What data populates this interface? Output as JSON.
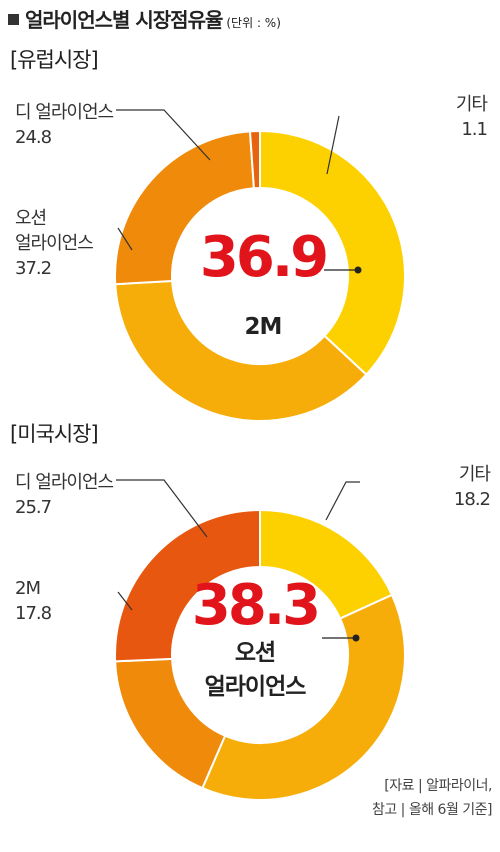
{
  "header": {
    "title": "얼라이언스별 시장점유율",
    "unit": "(단위 : %)"
  },
  "chart_data": [
    {
      "type": "pie",
      "title": "[유럽시장]",
      "slices": [
        {
          "name": "2M",
          "value": 36.9,
          "color": "#fdd000",
          "label": "2M"
        },
        {
          "name": "오션 얼라이언스",
          "value": 37.2,
          "color": "#f6ad0a",
          "label": [
            "오션",
            "얼라이언스"
          ]
        },
        {
          "name": "디 얼라이언스",
          "value": 24.8,
          "color": "#ef8a0b",
          "label": [
            "디 얼라이언스"
          ]
        },
        {
          "name": "기타",
          "value": 1.1,
          "color": "#e7630d",
          "label": [
            "기타"
          ]
        }
      ],
      "center": {
        "value": "36.9",
        "name": "2M"
      }
    },
    {
      "type": "pie",
      "title": "[미국시장]",
      "slices": [
        {
          "name": "기타",
          "value": 18.2,
          "color": "#fdd000",
          "label": [
            "기타"
          ]
        },
        {
          "name": "오션 얼라이언스",
          "value": 38.3,
          "color": "#f6ad0a",
          "label": [
            "오션",
            "얼라이언스"
          ]
        },
        {
          "name": "2M",
          "value": 17.8,
          "color": "#ef8a0b",
          "label": [
            "2M"
          ]
        },
        {
          "name": "디 얼라이언스",
          "value": 25.7,
          "color": "#e85710",
          "label": [
            "디 얼라이언스"
          ]
        }
      ],
      "center": {
        "value": "38.3",
        "name": [
          "오션",
          "얼라이언스"
        ]
      }
    }
  ],
  "source": {
    "line1": "[자료 | 알파라이너,",
    "line2": "참고 | 올해 6월 기준]"
  }
}
